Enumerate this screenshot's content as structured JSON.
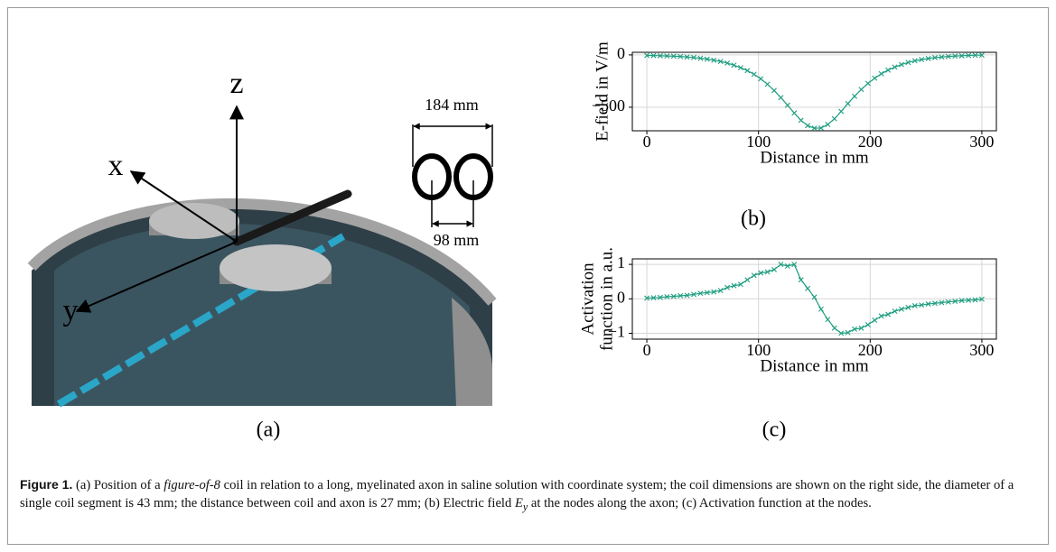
{
  "illustration": {
    "axis_z": "z",
    "axis_x": "x",
    "axis_y": "y",
    "coil_width": "184 mm",
    "coil_spacing": "98 mm",
    "panel_label": "(a)"
  },
  "chart_data": [
    {
      "type": "line",
      "marker": "x",
      "color": "#1f9e80",
      "grid": true,
      "ylabel": "E-field in V/m",
      "xlabel": "Distance in mm",
      "panel_label": "(b)",
      "x": [
        0,
        6,
        12,
        18,
        24,
        30,
        36,
        42,
        48,
        54,
        60,
        66,
        72,
        78,
        84,
        90,
        96,
        102,
        108,
        114,
        120,
        126,
        132,
        138,
        144,
        150,
        156,
        162,
        168,
        174,
        180,
        186,
        192,
        198,
        204,
        210,
        216,
        222,
        228,
        234,
        240,
        246,
        252,
        258,
        264,
        270,
        276,
        282,
        288,
        294,
        300
      ],
      "values": [
        -5,
        -6,
        -8,
        -10,
        -12,
        -15,
        -20,
        -25,
        -32,
        -40,
        -50,
        -62,
        -78,
        -98,
        -122,
        -150,
        -185,
        -228,
        -280,
        -340,
        -408,
        -480,
        -555,
        -625,
        -675,
        -700,
        -698,
        -665,
        -610,
        -540,
        -465,
        -395,
        -330,
        -272,
        -222,
        -180,
        -145,
        -116,
        -92,
        -72,
        -56,
        -44,
        -34,
        -26,
        -20,
        -15,
        -11,
        -8,
        -5,
        -3,
        -2
      ],
      "xlim": [
        -13,
        313
      ],
      "xticks": [
        0,
        100,
        200,
        300
      ],
      "ylim": [
        -725,
        25
      ],
      "yticks": [
        0,
        {
          "value": -500,
          "label": "−500"
        }
      ]
    },
    {
      "type": "line",
      "marker": "x",
      "color": "#1f9e80",
      "grid": true,
      "ylabel": [
        "Activation",
        "function in a.u."
      ],
      "xlabel": "Distance in mm",
      "panel_label": "(c)",
      "x": [
        0,
        6,
        12,
        18,
        24,
        30,
        36,
        42,
        48,
        54,
        60,
        66,
        72,
        78,
        84,
        90,
        96,
        102,
        108,
        114,
        120,
        126,
        132,
        138,
        144,
        150,
        156,
        162,
        168,
        174,
        180,
        186,
        192,
        198,
        204,
        210,
        216,
        222,
        228,
        234,
        240,
        246,
        252,
        258,
        264,
        270,
        276,
        282,
        288,
        294,
        300
      ],
      "values": [
        0.02,
        0.03,
        0.04,
        0.06,
        0.07,
        0.09,
        0.1,
        0.13,
        0.16,
        0.18,
        0.2,
        0.24,
        0.33,
        0.38,
        0.42,
        0.55,
        0.68,
        0.75,
        0.78,
        0.85,
        1.0,
        0.95,
        1.0,
        0.55,
        0.3,
        0.05,
        -0.3,
        -0.6,
        -0.85,
        -1.0,
        -0.98,
        -0.88,
        -0.85,
        -0.75,
        -0.62,
        -0.5,
        -0.45,
        -0.36,
        -0.3,
        -0.25,
        -0.2,
        -0.18,
        -0.15,
        -0.13,
        -0.11,
        -0.09,
        -0.07,
        -0.05,
        -0.04,
        -0.03,
        -0.01
      ],
      "xlim": [
        -13,
        313
      ],
      "xticks": [
        0,
        100,
        200,
        300
      ],
      "ylim": [
        -1.17,
        1.16
      ],
      "yticks": [
        {
          "value": -1,
          "label": "−1"
        },
        0,
        1
      ]
    }
  ],
  "caption": {
    "label": "Figure 1.",
    "text_1": "(a) Position of a ",
    "emph": "figure-of-8",
    "text_2": " coil in relation to a long, myelinated axon in saline solution with coordinate system; the coil dimensions are shown on the right side, the diameter of a single coil segment is 43 mm; the distance between coil and axon is 27 mm; (b) Electric field ",
    "symbol": "E",
    "subscript": "y",
    "text_3": " at the nodes along the axon; (c) Activation function at the nodes."
  }
}
